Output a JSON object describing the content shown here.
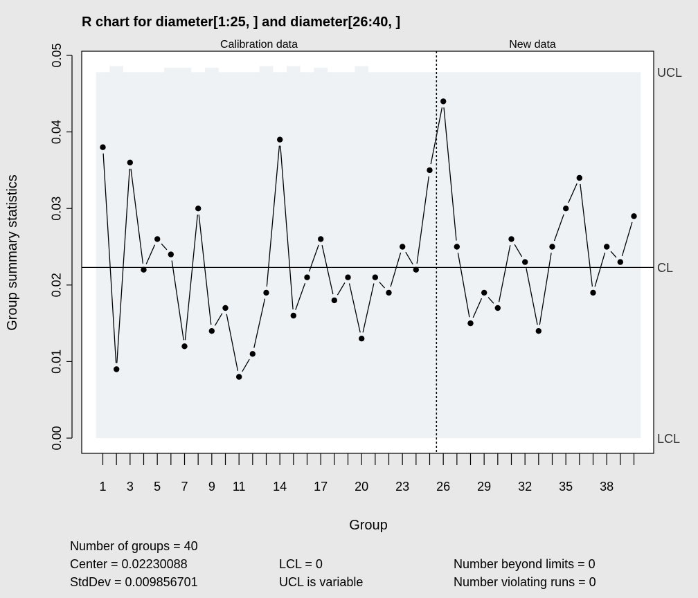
{
  "chart_data": {
    "type": "line",
    "title": "R chart for diameter[1:25, ] and diameter[26:40, ]",
    "xlabel": "Group",
    "ylabel": "Group summary statistics",
    "ylim": [
      0,
      0.05
    ],
    "xlim": [
      1,
      40
    ],
    "yticks": [
      "0.00",
      "0.01",
      "0.02",
      "0.03",
      "0.04",
      "0.05"
    ],
    "xtick_labels": [
      {
        "x": 1,
        "label": "1"
      },
      {
        "x": 3,
        "label": "3"
      },
      {
        "x": 5,
        "label": "5"
      },
      {
        "x": 7,
        "label": "7"
      },
      {
        "x": 9,
        "label": "9"
      },
      {
        "x": 11,
        "label": "11"
      },
      {
        "x": 14,
        "label": "14"
      },
      {
        "x": 17,
        "label": "17"
      },
      {
        "x": 20,
        "label": "20"
      },
      {
        "x": 23,
        "label": "23"
      },
      {
        "x": 26,
        "label": "26"
      },
      {
        "x": 29,
        "label": "29"
      },
      {
        "x": 32,
        "label": "32"
      },
      {
        "x": 35,
        "label": "35"
      },
      {
        "x": 38,
        "label": "38"
      }
    ],
    "section_labels": {
      "calibration": "Calibration data",
      "new": "New data"
    },
    "split_after_group": 25,
    "series": [
      {
        "values": [
          0.038,
          0.009,
          0.036,
          0.022,
          0.026,
          0.024,
          0.012,
          0.03,
          0.014,
          0.017,
          0.008,
          0.011,
          0.019,
          0.039,
          0.016,
          0.021,
          0.026,
          0.018,
          0.021,
          0.013,
          0.021,
          0.019,
          0.025,
          0.022,
          0.035,
          0.044,
          0.025,
          0.015,
          0.019,
          0.017,
          0.026,
          0.023,
          0.014,
          0.025,
          0.03,
          0.034,
          0.019,
          0.025,
          0.023,
          0.029
        ]
      }
    ],
    "center_line": {
      "label": "CL",
      "value": 0.02230088
    },
    "ucl": {
      "label": "UCL",
      "values": [
        0.0478,
        0.0486,
        0.0478,
        0.0478,
        0.0478,
        0.0484,
        0.0484,
        0.0478,
        0.0484,
        0.0478,
        0.0478,
        0.0478,
        0.0486,
        0.0478,
        0.0486,
        0.0478,
        0.0484,
        0.0478,
        0.0478,
        0.0486,
        0.0478,
        0.0478,
        0.0478,
        0.0478,
        0.0478,
        0.0478,
        0.0478,
        0.0478,
        0.0478,
        0.0478,
        0.0478,
        0.0478,
        0.0478,
        0.0478,
        0.0478,
        0.0478,
        0.0478,
        0.0478,
        0.0478,
        0.0478
      ]
    },
    "lcl": {
      "label": "LCL",
      "value": 0
    },
    "colors": {
      "band": "#eff2f5",
      "line": "#000000",
      "background": "#e8e8e8",
      "plot": "#ffffff"
    }
  },
  "stats": {
    "groups": "Number of groups = 40",
    "center": "Center = 0.02230088",
    "stddev": "StdDev = 0.009856701",
    "lcl": "LCL = 0",
    "ucl": "UCL is variable",
    "beyond": "Number beyond limits = 0",
    "runs": "Number violating runs = 0"
  }
}
